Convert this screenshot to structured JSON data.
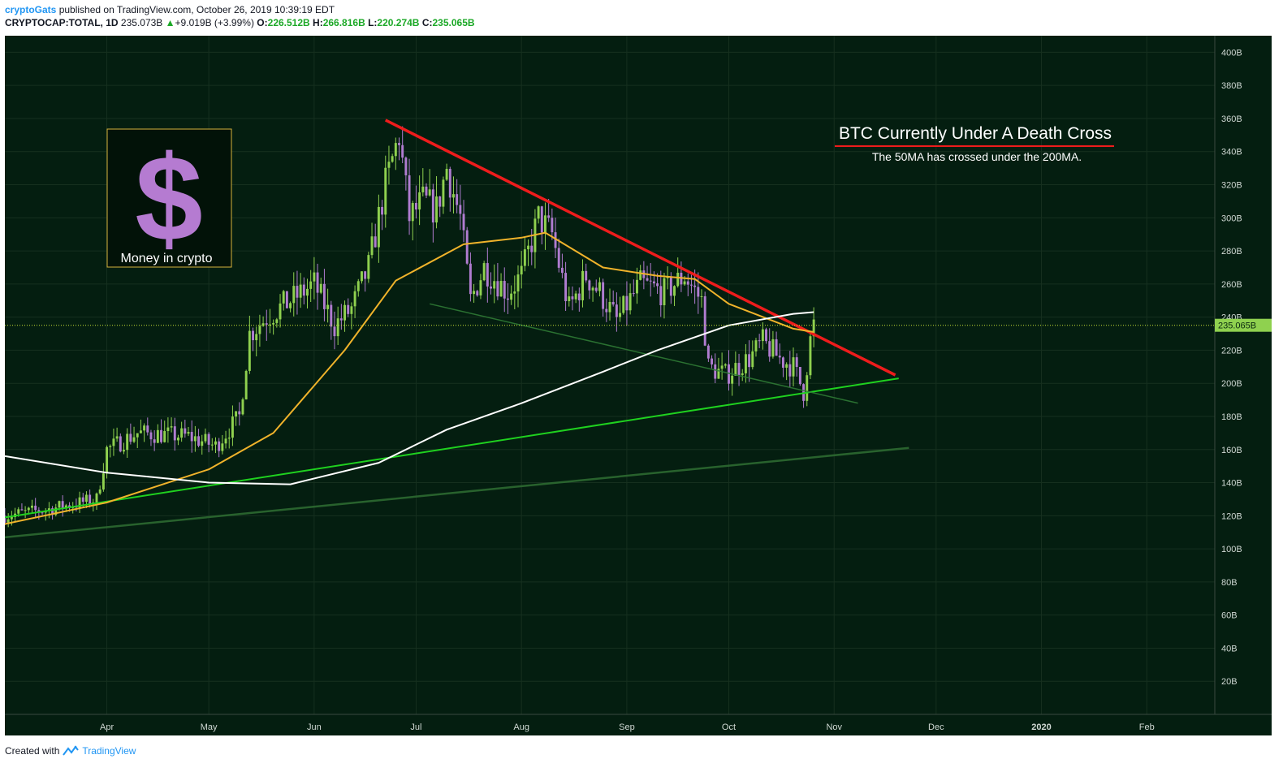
{
  "header": {
    "author": "cryptoGats",
    "published_text": "published on TradingView.com, October 26, 2019 10:39:19 EDT",
    "symbol": "CRYPTOCAP:TOTAL, 1D",
    "last": "235.073B",
    "change": "+9.019B (+3.99%)",
    "o_label": "O:",
    "o_value": "226.512B",
    "h_label": "H:",
    "h_value": "266.816B",
    "l_label": "L:",
    "l_value": "220.274B",
    "c_label": "C:",
    "c_value": "235.065B"
  },
  "logo": {
    "symbol": "$",
    "caption": "Money in crypto",
    "icon": "dollar-sign-icon"
  },
  "annotation": {
    "title": "BTC Currently Under A Death Cross",
    "subtitle": "The 50MA has crossed under the 200MA."
  },
  "price_label": "235.065B",
  "footer": {
    "created_with": "Created with",
    "brand": "TradingView",
    "icon": "tradingview-logo-icon"
  },
  "colors": {
    "background": "#041e10",
    "up": "#8fd14f",
    "down": "#b07cd0",
    "ma50": "#f0b32b",
    "ma200": "#ffffff",
    "resistance": "#ee1c1c",
    "support": "#1fd11f",
    "price_line": "#c8e635"
  },
  "chart_data": {
    "type": "candlestick",
    "title": "CRYPTOCAP:TOTAL, 1D",
    "ylim": [
      0,
      410
    ],
    "y_unit": "B",
    "y_ticks": [
      "400B",
      "380B",
      "360B",
      "340B",
      "320B",
      "300B",
      "280B",
      "260B",
      "240B",
      "220B",
      "200B",
      "180B",
      "160B",
      "140B",
      "120B",
      "100B",
      "80B",
      "60B",
      "40B",
      "20B"
    ],
    "x_ticks": [
      "Apr",
      "May",
      "Jun",
      "Jul",
      "Aug",
      "Sep",
      "Oct",
      "Nov",
      "Dec",
      "2020",
      "Feb"
    ],
    "x_range": [
      "2019-03-02",
      "2020-02-21"
    ],
    "last_close": 235.065,
    "price_path": [
      [
        "2019-03-02",
        120
      ],
      [
        "2019-03-15",
        124
      ],
      [
        "2019-03-29",
        130
      ],
      [
        "2019-04-01",
        160
      ],
      [
        "2019-04-10",
        170
      ],
      [
        "2019-04-25",
        168
      ],
      [
        "2019-05-03",
        162
      ],
      [
        "2019-05-10",
        180
      ],
      [
        "2019-05-13",
        230
      ],
      [
        "2019-05-18",
        240
      ],
      [
        "2019-05-25",
        250
      ],
      [
        "2019-06-01",
        260
      ],
      [
        "2019-06-07",
        235
      ],
      [
        "2019-06-12",
        245
      ],
      [
        "2019-06-17",
        270
      ],
      [
        "2019-06-22",
        320
      ],
      [
        "2019-06-26",
        350
      ],
      [
        "2019-06-29",
        300
      ],
      [
        "2019-07-03",
        310
      ],
      [
        "2019-07-07",
        305
      ],
      [
        "2019-07-10",
        330
      ],
      [
        "2019-07-14",
        300
      ],
      [
        "2019-07-17",
        250
      ],
      [
        "2019-07-21",
        270
      ],
      [
        "2019-07-28",
        255
      ],
      [
        "2019-08-01",
        265
      ],
      [
        "2019-08-06",
        300
      ],
      [
        "2019-08-10",
        290
      ],
      [
        "2019-08-15",
        245
      ],
      [
        "2019-08-20",
        265
      ],
      [
        "2019-08-24",
        255
      ],
      [
        "2019-08-29",
        238
      ],
      [
        "2019-09-05",
        260
      ],
      [
        "2019-09-12",
        255
      ],
      [
        "2019-09-18",
        265
      ],
      [
        "2019-09-23",
        250
      ],
      [
        "2019-09-25",
        210
      ],
      [
        "2019-09-30",
        205
      ],
      [
        "2019-10-07",
        215
      ],
      [
        "2019-10-11",
        225
      ],
      [
        "2019-10-16",
        215
      ],
      [
        "2019-10-20",
        210
      ],
      [
        "2019-10-23",
        195
      ],
      [
        "2019-10-25",
        226
      ],
      [
        "2019-10-26",
        235
      ]
    ],
    "series": [
      {
        "name": "50MA",
        "points": [
          [
            "2019-03-02",
            115
          ],
          [
            "2019-04-01",
            128
          ],
          [
            "2019-05-01",
            148
          ],
          [
            "2019-05-20",
            170
          ],
          [
            "2019-06-10",
            220
          ],
          [
            "2019-06-25",
            262
          ],
          [
            "2019-07-15",
            284
          ],
          [
            "2019-08-01",
            288
          ],
          [
            "2019-08-08",
            291
          ],
          [
            "2019-08-25",
            270
          ],
          [
            "2019-09-10",
            265
          ],
          [
            "2019-09-21",
            263
          ],
          [
            "2019-10-01",
            248
          ],
          [
            "2019-10-20",
            233
          ],
          [
            "2019-10-26",
            231
          ]
        ]
      },
      {
        "name": "200MA",
        "points": [
          [
            "2019-03-02",
            156
          ],
          [
            "2019-04-01",
            146
          ],
          [
            "2019-05-01",
            140
          ],
          [
            "2019-05-25",
            139
          ],
          [
            "2019-06-20",
            152
          ],
          [
            "2019-07-10",
            172
          ],
          [
            "2019-08-01",
            188
          ],
          [
            "2019-08-25",
            207
          ],
          [
            "2019-09-10",
            220
          ],
          [
            "2019-10-01",
            235
          ],
          [
            "2019-10-20",
            242
          ],
          [
            "2019-10-26",
            243
          ]
        ]
      }
    ],
    "trendlines": [
      {
        "name": "resistance",
        "from": [
          "2019-06-22",
          359
        ],
        "to": [
          "2019-11-19",
          205
        ]
      },
      {
        "name": "support",
        "from": [
          "2019-03-02",
          119
        ],
        "to": [
          "2019-11-20",
          203
        ]
      },
      {
        "name": "lower channel",
        "from": [
          "2019-07-05",
          248
        ],
        "to": [
          "2019-11-08",
          188
        ]
      },
      {
        "name": "long support",
        "from": [
          "2019-03-02",
          107
        ],
        "to": [
          "2019-11-23",
          161
        ]
      }
    ]
  }
}
